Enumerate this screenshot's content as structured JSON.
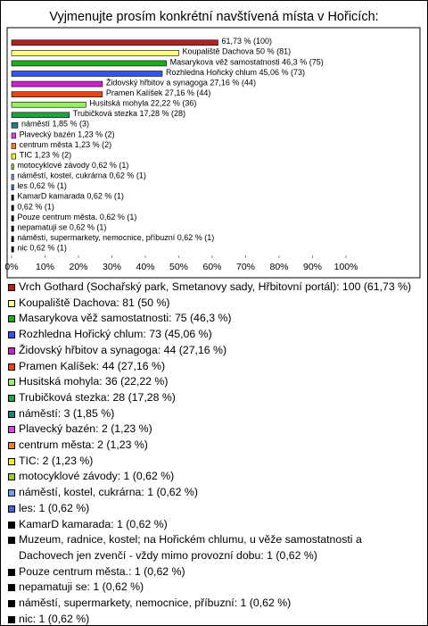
{
  "chart_data": {
    "type": "bar",
    "orientation": "horizontal",
    "title": "Vyjmenujte prosím konkrétní navštívená místa v Hořicích:",
    "categories": [
      "Vrch Gothard (Sochařský park, Smetanovy sady, Hřbitovní portál): 100 (61,73 %)",
      "Koupaliště Dachova: 81 (50 %)",
      "Masarykova věž samostatnosti: 75 (46,3 %)",
      "Rozhledna Hořický chlum: 73 (45,06 %)",
      "Židovský hřbitov a synagoga: 44 (27,16 %)",
      "Pramen Kalíšek: 44 (27,16 %)",
      "Husitská mohyla: 36 (22,22 %)",
      "Trubičková stezka: 28 (17,28 %)",
      "náměstí: 3 (1,85 %)",
      "Plavecký bazén: 2 (1,23 %)",
      "centrum města: 2 (1,23 %)",
      "TIC: 2 (1,23 %)",
      "motocyklové závody: 1 (0,62 %)",
      "náměstí, kostel, cukrárna: 1 (0,62 %)",
      "les: 1 (0,62 %)",
      "KamarD kamarada: 1 (0,62 %)",
      "Muzeum, radnice, kostel; na Hořickém chlumu, u věže samostatnosti a Dachovech jen zvenčí - vždy mimo provozní dobu: 1 (0,62 %)",
      "Pouze centrum města.: 1 (0,62 %)",
      "nepamatuji se: 1 (0,62 %)",
      "náměstí, supermarkety, nemocnice, příbuzní: 1 (0,62 %)",
      "nic: 1 (0,62 %)"
    ],
    "values": [
      61.73,
      50,
      46.3,
      45.06,
      27.16,
      27.16,
      22.22,
      17.28,
      1.85,
      1.23,
      1.23,
      1.23,
      0.62,
      0.62,
      0.62,
      0.62,
      0.62,
      0.62,
      0.62,
      0.62,
      0.62
    ],
    "value_labels": [
      "61,73 % (100)",
      "Koupaliště Dachova 50 % (81)",
      "Masarykova věž samostatnosti 46,3 % (75)",
      "Rozhledna Hořický chlum 45,06 % (73)",
      "Židovský hřbitov a synagoga 27,16 % (44)",
      "Pramen Kalíšek 27,16 % (44)",
      "Husitská mohyla 22,22 % (36)",
      "Trubičková stezka 17,28 % (28)",
      "náměstí 1,85 % (3)",
      "Plavecký bazén 1,23 % (2)",
      "centrum města 1,23 % (2)",
      "TIC 1,23 % (2)",
      "motocyklové závody 0,62 % (1)",
      "náměstí, kostel, cukrárna 0,62 % (1)",
      "les 0,62 % (1)",
      "KamarD kamarada 0,62 % (1)",
      "0,62 % (1)",
      "Pouze centrum města. 0,62 % (1)",
      "nepamatuji se 0,62 % (1)",
      "náměstí, supermarkety, nemocnice, příbuzní 0,62 % (1)",
      "nic 0,62 % (1)"
    ],
    "colors": [
      "#b22222",
      "#ffff80",
      "#22aa22",
      "#3355ee",
      "#cc22cc",
      "#e04818",
      "#99ee66",
      "#22a044",
      "#2a7a7a",
      "#dd44dd",
      "#f08020",
      "#eeee22",
      "#99cc22",
      "#7799ee",
      "#4466cc",
      "#000000",
      "#000000",
      "#000000",
      "#000000",
      "#000000",
      "#000000"
    ],
    "xlim": [
      0,
      100
    ],
    "xticks": [
      {
        "value": 0,
        "label": "0%"
      },
      {
        "value": 10,
        "label": "10%"
      },
      {
        "value": 20,
        "label": "20%"
      },
      {
        "value": 30,
        "label": "30%"
      },
      {
        "value": 40,
        "label": "40%"
      },
      {
        "value": 50,
        "label": "50%"
      },
      {
        "value": 60,
        "label": "60%"
      },
      {
        "value": 70,
        "label": "70%"
      },
      {
        "value": 80,
        "label": "80%"
      },
      {
        "value": 90,
        "label": "90%"
      },
      {
        "value": 100,
        "label": "100%"
      }
    ]
  }
}
